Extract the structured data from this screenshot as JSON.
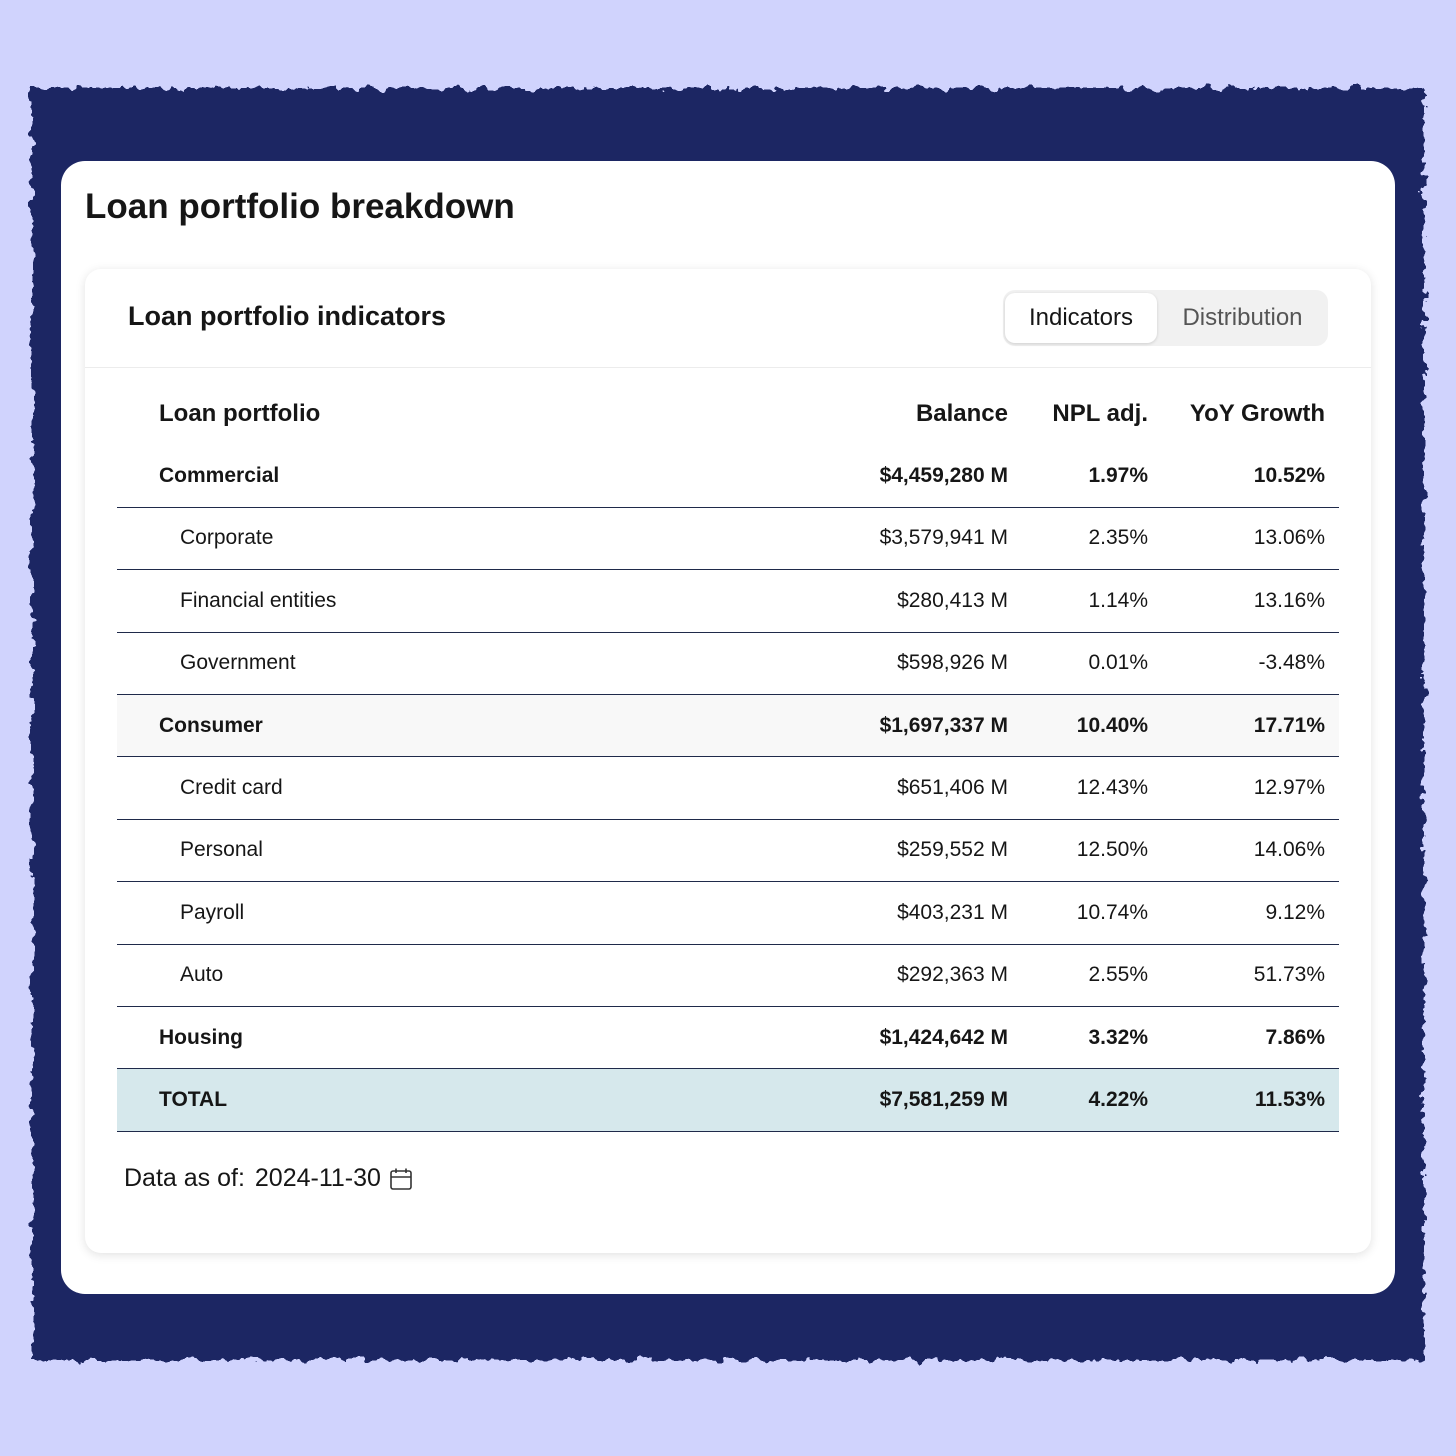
{
  "header": {
    "title": "Loan portfolio breakdown"
  },
  "card": {
    "title": "Loan portfolio indicators",
    "tabs": [
      "Indicators",
      "Distribution"
    ]
  },
  "table": {
    "columns": [
      "Loan portfolio",
      "Balance",
      "NPL adj.",
      "YoY Growth"
    ],
    "rows": [
      [
        "Commercial",
        "$4,459,280 M",
        "1.97%",
        "10.52%"
      ],
      [
        "Corporate",
        "$3,579,941 M",
        "2.35%",
        "13.06%"
      ],
      [
        "Financial entities",
        "$280,413 M",
        "1.14%",
        "13.16%"
      ],
      [
        "Government",
        "$598,926 M",
        "0.01%",
        "-3.48%"
      ],
      [
        "Consumer",
        "$1,697,337 M",
        "10.40%",
        "17.71%"
      ],
      [
        "Credit card",
        "$651,406 M",
        "12.43%",
        "12.97%"
      ],
      [
        "Personal",
        "$259,552 M",
        "12.50%",
        "14.06%"
      ],
      [
        "Payroll",
        "$403,231 M",
        "10.74%",
        "9.12%"
      ],
      [
        "Auto",
        "$292,363 M",
        "2.55%",
        "51.73%"
      ],
      [
        "Housing",
        "$1,424,642 M",
        "3.32%",
        "7.86%"
      ],
      [
        "TOTAL",
        "$7,581,259 M",
        "4.22%",
        "11.53%"
      ]
    ]
  },
  "footer": {
    "label": "Data as of:",
    "date": "2024-11-30"
  }
}
